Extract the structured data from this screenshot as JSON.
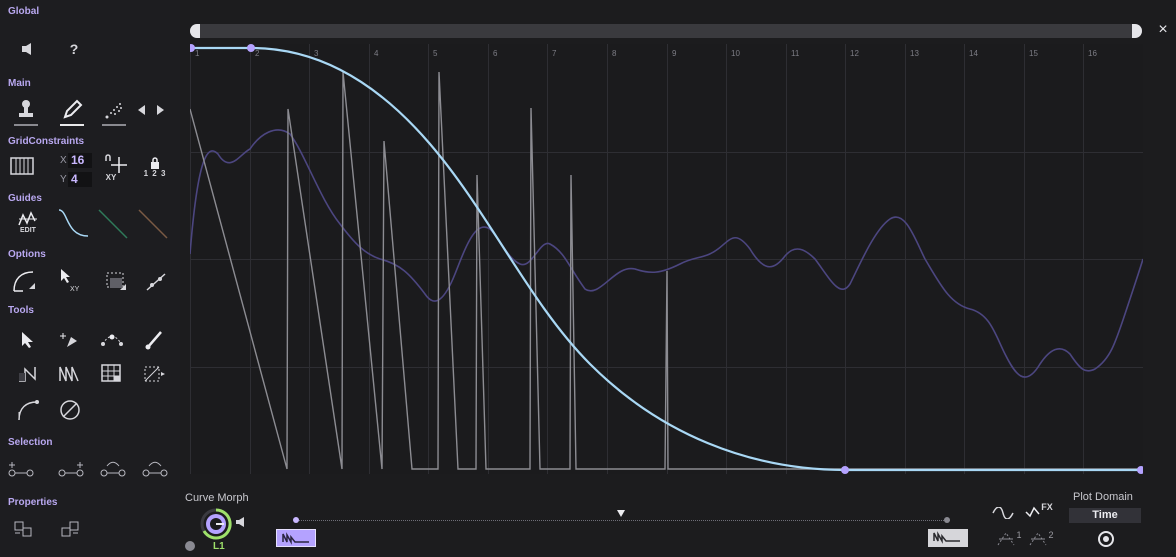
{
  "sidebar": {
    "sections": {
      "global": "Global",
      "main": "Main",
      "grid_constraints": "GridConstraints",
      "guides": "Guides",
      "options": "Options",
      "tools": "Tools",
      "selection": "Selection",
      "properties": "Properties"
    },
    "global_help_label": "?",
    "grid_x_label": "X",
    "grid_x_value": "16",
    "grid_y_label": "Y",
    "grid_y_value": "4",
    "xy_label": "XY",
    "xy_label_2": "XY",
    "snap_numbers_label": "1 2 3",
    "guides_edit_label": "EDIT"
  },
  "plot": {
    "bar_numbers": [
      "1",
      "2",
      "3",
      "4",
      "5",
      "6",
      "7",
      "8",
      "9",
      "10",
      "11",
      "12",
      "13",
      "14",
      "15",
      "16"
    ],
    "accent_color": "#a9d8f5",
    "guide_color": "#4c4680",
    "spike_color": "#8c8c92",
    "node_color": "#b4a2ff"
  },
  "bottom": {
    "curve_morph_label": "Curve Morph",
    "lfo_label": "L1",
    "plot_domain_label": "Plot Domain",
    "plot_domain_value": "Time",
    "fx_label": "FX",
    "fx_slot1_label": "1",
    "fx_slot2_label": "2"
  },
  "close_label": "×",
  "icons": {
    "speaker": "speaker-icon",
    "help": "help-icon",
    "stamp": "stamp-tool-icon",
    "pencil": "pencil-tool-icon",
    "spray": "spray-tool-icon",
    "prev": "chevron-left-icon",
    "next": "chevron-right-icon"
  }
}
